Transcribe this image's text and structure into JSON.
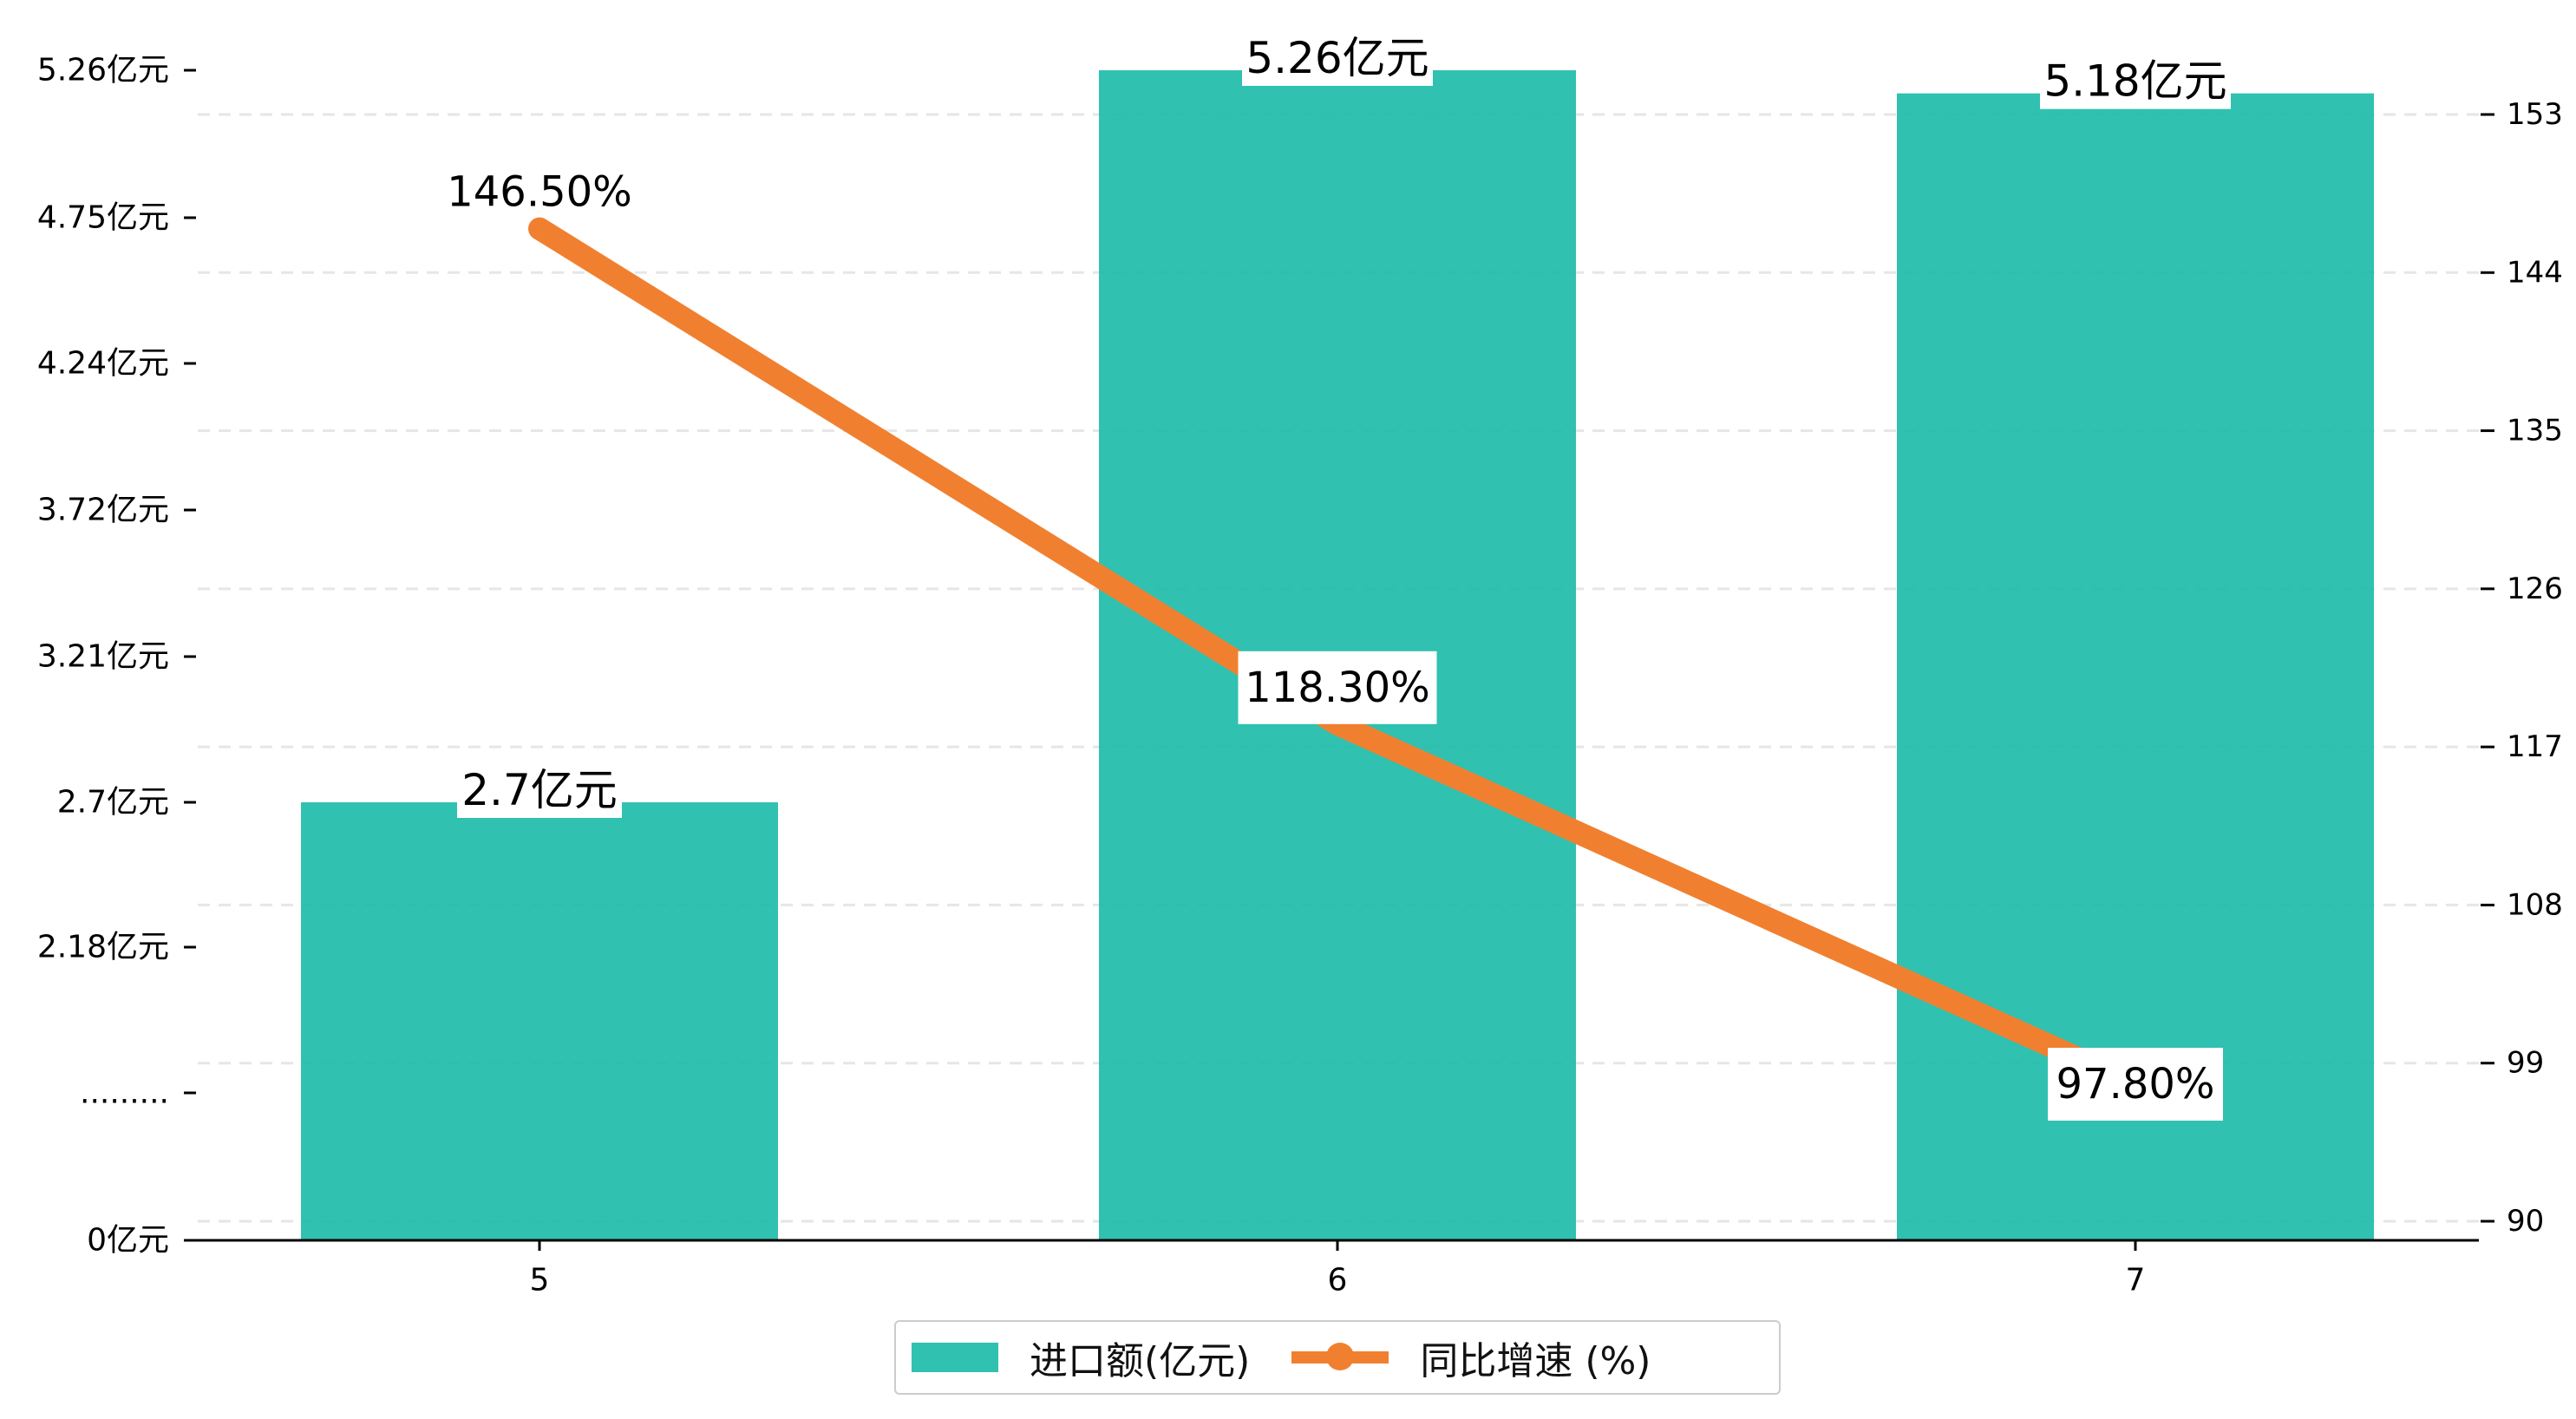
{
  "chart_data": {
    "type": "bar",
    "categories": [
      "5",
      "6",
      "7"
    ],
    "series": [
      {
        "name": "进口额(亿元)",
        "type": "bar",
        "axis": "left",
        "values": [
          2.7,
          5.26,
          5.18
        ],
        "labels": [
          "2.7亿元",
          "5.26亿元",
          "5.18亿元"
        ],
        "color": "#1abaa7"
      },
      {
        "name": "同比增速 (%)",
        "type": "line",
        "axis": "right",
        "values": [
          146.5,
          118.3,
          97.8
        ],
        "labels": [
          "146.50%",
          "118.30%",
          "97.80%"
        ],
        "color": "#f08030"
      }
    ],
    "y_left": {
      "ticks": [
        {
          "value": 0,
          "label": "0亿元"
        },
        {
          "value": 1.67,
          "label": "........."
        },
        {
          "value": 2.18,
          "label": "2.18亿元"
        },
        {
          "value": 2.7,
          "label": "2.7亿元"
        },
        {
          "value": 3.21,
          "label": "3.21亿元"
        },
        {
          "value": 3.72,
          "label": "3.72亿元"
        },
        {
          "value": 4.24,
          "label": "4.24亿元"
        },
        {
          "value": 4.75,
          "label": "4.75亿元"
        },
        {
          "value": 5.26,
          "label": "5.26亿元"
        }
      ],
      "range": [
        0,
        5.26
      ],
      "broken_axis": true
    },
    "y_right": {
      "ticks": [
        90,
        99,
        108,
        117,
        126,
        135,
        144,
        153
      ],
      "range": [
        90,
        155.5
      ]
    },
    "grid": "horizontal dashed",
    "legend": {
      "placement": "bottom-center",
      "entries": [
        "进口额(亿元)",
        "同比增速 (%)"
      ]
    }
  }
}
